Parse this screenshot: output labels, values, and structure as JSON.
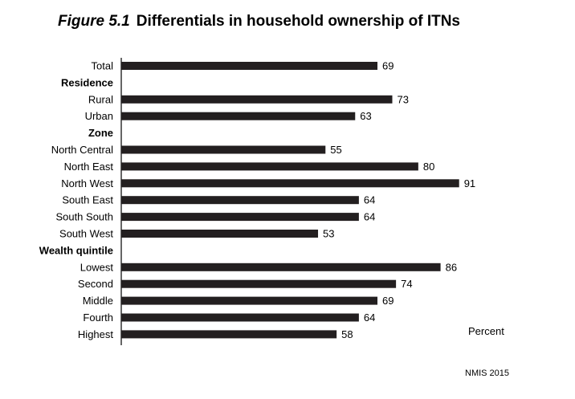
{
  "title": {
    "figure_number": "Figure 5.1",
    "text": "Differentials in household ownership of ITNs"
  },
  "chart_data": {
    "type": "bar",
    "orientation": "horizontal",
    "unit_label": "Percent",
    "source": "NMIS 2015",
    "xlim": [
      0,
      100
    ],
    "bar_color": "#231f20",
    "rows": [
      {
        "label": "Total",
        "value": 69,
        "header": false
      },
      {
        "label": "Residence",
        "value": null,
        "header": true
      },
      {
        "label": "Rural",
        "value": 73,
        "header": false
      },
      {
        "label": "Urban",
        "value": 63,
        "header": false
      },
      {
        "label": "Zone",
        "value": null,
        "header": true
      },
      {
        "label": "North Central",
        "value": 55,
        "header": false
      },
      {
        "label": "North East",
        "value": 80,
        "header": false
      },
      {
        "label": "North West",
        "value": 91,
        "header": false
      },
      {
        "label": "South East",
        "value": 64,
        "header": false
      },
      {
        "label": "South South",
        "value": 64,
        "header": false
      },
      {
        "label": "South West",
        "value": 53,
        "header": false
      },
      {
        "label": "Wealth quintile",
        "value": null,
        "header": true
      },
      {
        "label": "Lowest",
        "value": 86,
        "header": false
      },
      {
        "label": "Second",
        "value": 74,
        "header": false
      },
      {
        "label": "Middle",
        "value": 69,
        "header": false
      },
      {
        "label": "Fourth",
        "value": 64,
        "header": false
      },
      {
        "label": "Highest",
        "value": 58,
        "header": false
      }
    ]
  }
}
